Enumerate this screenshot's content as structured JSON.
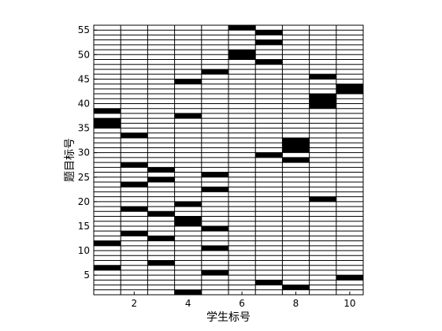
{
  "chart_data": {
    "type": "heatmap",
    "xlabel": "学生标号",
    "ylabel": "题目标号",
    "xlim": [
      1,
      11
    ],
    "ylim": [
      1,
      56
    ],
    "columns": 10,
    "rows": 55,
    "x_ticks": [
      2,
      4,
      6,
      8,
      10
    ],
    "y_ticks": [
      5,
      10,
      15,
      20,
      25,
      30,
      35,
      40,
      45,
      50,
      55
    ],
    "cells": [
      {
        "student": 1,
        "questions": [
          7,
          12,
          36,
          37,
          39
        ]
      },
      {
        "student": 2,
        "questions": [
          14,
          19,
          24,
          28,
          34
        ]
      },
      {
        "student": 3,
        "questions": [
          8,
          13,
          18,
          25,
          27
        ]
      },
      {
        "student": 4,
        "questions": [
          2,
          16,
          17,
          20,
          38,
          45
        ]
      },
      {
        "student": 5,
        "questions": [
          6,
          11,
          15,
          23,
          26,
          47
        ]
      },
      {
        "student": 6,
        "questions": [
          50,
          51,
          56
        ]
      },
      {
        "student": 7,
        "questions": [
          4,
          30,
          49,
          53,
          55
        ]
      },
      {
        "student": 8,
        "questions": [
          3,
          29,
          31,
          32,
          33
        ]
      },
      {
        "student": 9,
        "questions": [
          21,
          40,
          41,
          42,
          46
        ]
      },
      {
        "student": 10,
        "questions": [
          5,
          43,
          44
        ]
      }
    ],
    "colors": {
      "filled": "#000000",
      "empty": "#ffffff",
      "grid": "#000000"
    },
    "grid": true,
    "legend": false
  }
}
